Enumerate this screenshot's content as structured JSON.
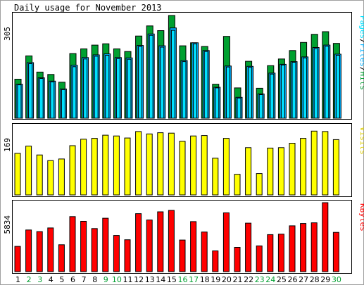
{
  "page_title": "Daily usage for November 2013",
  "colors": {
    "hits": "#00a030",
    "files": "#00b0ff",
    "pages": "#00e0ff",
    "visits": "#ffff00",
    "kbytes": "#ff0000",
    "weekday": "#000000",
    "weekend": "#00a030"
  },
  "legend": {
    "hits_files_pages": {
      "pages": "Pages",
      "sep1": "/",
      "files": "Files",
      "sep2": "/",
      "hits": "Hits"
    },
    "visits": "Visits",
    "kbytes": "KBytes"
  },
  "chart_data": [
    {
      "type": "bar",
      "name": "hits-files-pages",
      "ymax_label": "305",
      "ylim": [
        0,
        305
      ],
      "categories": [
        "1",
        "2",
        "3",
        "4",
        "5",
        "6",
        "7",
        "8",
        "9",
        "10",
        "11",
        "12",
        "13",
        "14",
        "15",
        "16",
        "17",
        "18",
        "19",
        "20",
        "21",
        "22",
        "23",
        "24",
        "25",
        "26",
        "27",
        "28",
        "29",
        "30"
      ],
      "weekend_days": [
        "2",
        "3",
        "9",
        "10",
        "16",
        "17",
        "23",
        "24",
        "30"
      ],
      "series": [
        {
          "key": "hits",
          "values": [
            116,
            185,
            137,
            130,
            107,
            192,
            206,
            217,
            221,
            206,
            198,
            244,
            274,
            260,
            305,
            215,
            224,
            213,
            101,
            243,
            90,
            169,
            89,
            156,
            176,
            201,
            225,
            249,
            257,
            222
          ]
        },
        {
          "key": "files",
          "values": [
            101,
            165,
            120,
            110,
            87,
            157,
            180,
            188,
            191,
            180,
            179,
            216,
            250,
            215,
            268,
            171,
            224,
            201,
            92,
            155,
            62,
            154,
            72,
            134,
            160,
            168,
            182,
            210,
            217,
            190
          ]
        },
        {
          "key": "pages",
          "values": [
            99,
            162,
            118,
            108,
            85,
            153,
            176,
            184,
            187,
            177,
            175,
            213,
            246,
            211,
            261,
            168,
            221,
            198,
            90,
            152,
            60,
            151,
            70,
            131,
            158,
            166,
            179,
            207,
            214,
            187
          ]
        }
      ]
    },
    {
      "type": "bar",
      "name": "visits",
      "ymax_label": "169",
      "ylim": [
        0,
        169
      ],
      "categories": [
        "1",
        "2",
        "3",
        "4",
        "5",
        "6",
        "7",
        "8",
        "9",
        "10",
        "11",
        "12",
        "13",
        "14",
        "15",
        "16",
        "17",
        "18",
        "19",
        "20",
        "21",
        "22",
        "23",
        "24",
        "25",
        "26",
        "27",
        "28",
        "29",
        "30"
      ],
      "series": [
        {
          "key": "visits",
          "values": [
            103,
            121,
            99,
            85,
            89,
            122,
            138,
            140,
            148,
            146,
            141,
            157,
            151,
            154,
            153,
            133,
            146,
            147,
            91,
            140,
            51,
            117,
            53,
            116,
            117,
            128,
            140,
            158,
            157,
            137
          ]
        }
      ]
    },
    {
      "type": "bar",
      "name": "kbytes",
      "ymax_label": "5834",
      "ylim": [
        0,
        5834
      ],
      "categories": [
        "1",
        "2",
        "3",
        "4",
        "5",
        "6",
        "7",
        "8",
        "9",
        "10",
        "11",
        "12",
        "13",
        "14",
        "15",
        "16",
        "17",
        "18",
        "19",
        "20",
        "21",
        "22",
        "23",
        "24",
        "25",
        "26",
        "27",
        "28",
        "29",
        "30"
      ],
      "series": [
        {
          "key": "kbytes",
          "values": [
            2139,
            3526,
            3387,
            3696,
            2275,
            4656,
            4257,
            3644,
            4521,
            3058,
            2694,
            4904,
            4367,
            5062,
            5185,
            2670,
            4234,
            3350,
            1755,
            4974,
            2055,
            4100,
            2181,
            3132,
            3175,
            3875,
            4074,
            4131,
            5834,
            3323
          ]
        }
      ]
    }
  ]
}
